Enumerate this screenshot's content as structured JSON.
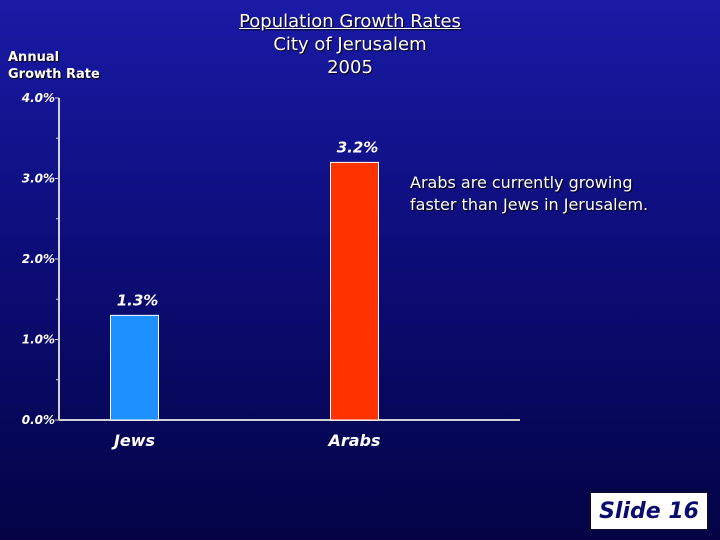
{
  "slide": {
    "title_line1": "Population Growth Rates",
    "title_line2": "City of Jerusalem",
    "title_line3": "2005",
    "ylabel_line1": "Annual",
    "ylabel_line2": "Growth Rate",
    "annotation_line1": "Arabs are currently growing",
    "annotation_line2": "faster than Jews in Jerusalem.",
    "badge": "Slide 16"
  },
  "chart_data": {
    "type": "bar",
    "title": "Population Growth Rates City of Jerusalem 2005",
    "ylabel": "Annual Growth Rate",
    "xlabel": "",
    "categories": [
      "Jews",
      "Arabs"
    ],
    "values": [
      1.3,
      3.2
    ],
    "value_labels": [
      "1.3%",
      "3.2%"
    ],
    "bar_colors": [
      "#1e90ff",
      "#ff3300"
    ],
    "ylim": [
      0,
      4
    ],
    "yticks": [
      0,
      1,
      2,
      3,
      4
    ],
    "ytick_labels": [
      "0.0%",
      "1.0%",
      "2.0%",
      "3.0%",
      "4.0%"
    ],
    "grid": false,
    "legend": "none"
  }
}
